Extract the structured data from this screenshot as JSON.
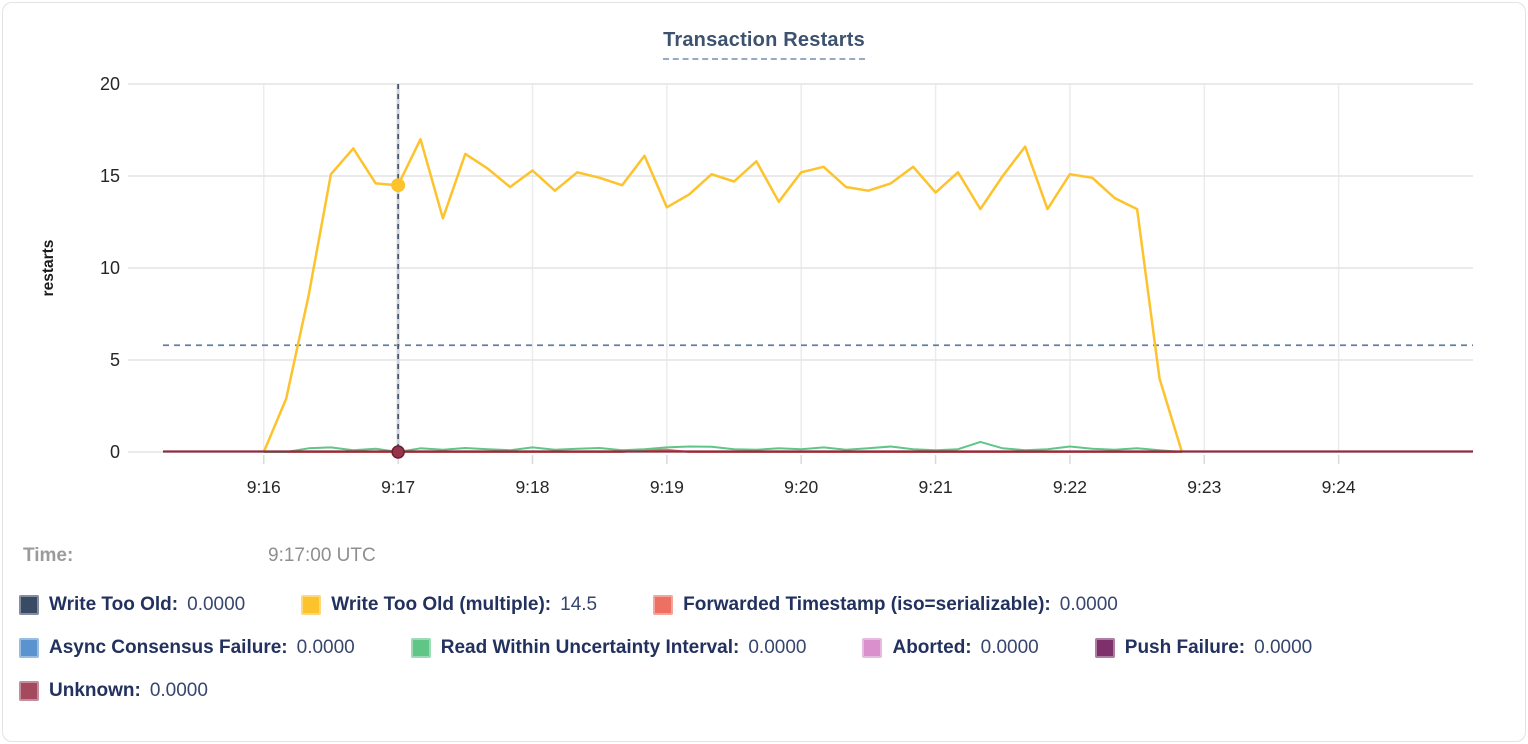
{
  "chart_data": {
    "type": "line",
    "title": "Transaction Restarts",
    "ylabel": "restarts",
    "ylim": [
      0,
      20
    ],
    "yticks": [
      0,
      5,
      10,
      15,
      20
    ],
    "xticks": [
      "9:16",
      "9:17",
      "9:18",
      "9:19",
      "9:20",
      "9:21",
      "9:22",
      "9:23",
      "9:24"
    ],
    "x_first_tick_minute": 916,
    "sample_interval_seconds": 10,
    "samples_start_tick": "9:16",
    "grid": "on",
    "legend_position": "bottom",
    "threshold_dashed_y": 5.8,
    "zero_line_color": "#8e2c40",
    "cursor": {
      "tick": "9:17",
      "time": "9:17:00 UTC",
      "crosshair_color": "#3d4f68",
      "marker_top_value": 14.5,
      "marker_bottom_value": 0
    },
    "series": [
      {
        "name": "Write Too Old",
        "color": "#394a64",
        "cursor_value": "0.0000",
        "flat_zero": true
      },
      {
        "name": "Write Too Old (multiple)",
        "color": "#fdc32c",
        "cursor_value": "14.5",
        "values": [
          0,
          2.9,
          8.5,
          15.1,
          16.5,
          14.6,
          14.5,
          17,
          12.7,
          16.2,
          15.4,
          14.4,
          15.3,
          14.2,
          15.2,
          14.9,
          14.5,
          16.1,
          13.3,
          14,
          15.1,
          14.7,
          15.8,
          13.6,
          15.2,
          15.5,
          14.4,
          14.2,
          14.6,
          15.5,
          14.1,
          15.2,
          13.2,
          15,
          16.6,
          13.2,
          15.1,
          14.9,
          13.8,
          13.2,
          4,
          0
        ]
      },
      {
        "name": "Forwarded Timestamp (iso=serializable)",
        "color": "#ed7063",
        "cursor_value": "0.0000",
        "values": [
          0,
          0,
          0,
          0,
          0,
          0,
          0,
          0,
          0,
          0,
          0,
          0,
          0,
          0,
          0,
          0,
          0,
          0.12,
          0.12,
          0,
          0,
          0,
          0,
          0,
          0,
          0,
          0,
          0,
          0,
          0,
          0,
          0,
          0,
          0,
          0,
          0,
          0,
          0,
          0,
          0,
          0,
          0
        ]
      },
      {
        "name": "Async Consensus Failure",
        "color": "#5b93cf",
        "cursor_value": "0.0000",
        "flat_zero": true
      },
      {
        "name": "Read Within Uncertainty Interval",
        "color": "#5fc688",
        "cursor_value": "0.0000",
        "values": [
          0,
          0,
          0.2,
          0.25,
          0.1,
          0.18,
          0,
          0.2,
          0.12,
          0.22,
          0.15,
          0.1,
          0.25,
          0.12,
          0.18,
          0.22,
          0.1,
          0.15,
          0.25,
          0.3,
          0.28,
          0.15,
          0.12,
          0.2,
          0.15,
          0.25,
          0.12,
          0.2,
          0.3,
          0.15,
          0.1,
          0.15,
          0.55,
          0.2,
          0.1,
          0.15,
          0.3,
          0.18,
          0.12,
          0.2,
          0.1,
          0
        ]
      },
      {
        "name": "Aborted",
        "color": "#d990cc",
        "cursor_value": "0.0000",
        "flat_zero": true
      },
      {
        "name": "Push Failure",
        "color": "#7d3069",
        "cursor_value": "0.0000",
        "flat_zero": true
      },
      {
        "name": "Unknown",
        "color": "#a34a5f",
        "cursor_value": "0.0000",
        "flat_zero": true
      }
    ]
  },
  "tooltip": {
    "time_label": "Time:",
    "time_value": "9:17:00 UTC"
  },
  "legend": {
    "rows": [
      [
        {
          "label": "Write Too Old:",
          "value": "0.0000",
          "color": "#394a64"
        },
        {
          "label": "Write Too Old (multiple):",
          "value": "14.5",
          "color": "#fdc32c"
        },
        {
          "label": "Forwarded Timestamp (iso=serializable):",
          "value": "0.0000",
          "color": "#ed7063"
        }
      ],
      [
        {
          "label": "Async Consensus Failure:",
          "value": "0.0000",
          "color": "#5b93cf"
        },
        {
          "label": "Read Within Uncertainty Interval:",
          "value": "0.0000",
          "color": "#5fc688"
        },
        {
          "label": "Aborted:",
          "value": "0.0000",
          "color": "#d990cc"
        },
        {
          "label": "Push Failure:",
          "value": "0.0000",
          "color": "#7d3069"
        }
      ],
      [
        {
          "label": "Unknown:",
          "value": "0.0000",
          "color": "#a34a5f"
        }
      ]
    ]
  }
}
